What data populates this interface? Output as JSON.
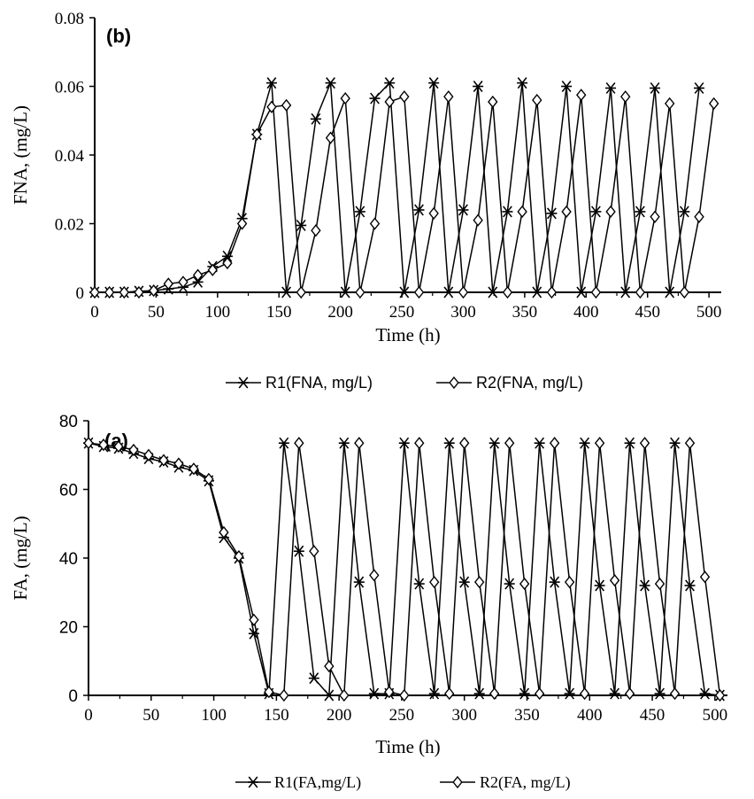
{
  "chart_data": [
    {
      "panel_label": "(b)",
      "type": "line",
      "xlabel": "Time (h)",
      "ylabel": "FNA, (mg/L)",
      "xlim": [
        0,
        510
      ],
      "ylim": [
        0,
        0.08
      ],
      "x_ticks": [
        "0",
        "50",
        "100",
        "150",
        "200",
        "250",
        "300",
        "350",
        "400",
        "450",
        "500"
      ],
      "y_ticks": [
        "0",
        "0.02",
        "0.04",
        "0.06",
        "0.08"
      ],
      "grid": false,
      "legend_position": "bottom",
      "series": [
        {
          "name": "R1(FNA, mg/L)",
          "marker": "asterisk",
          "x": [
            0,
            12,
            24,
            36,
            48,
            60,
            72,
            84,
            96,
            108,
            120,
            132,
            144,
            156,
            168,
            180,
            192,
            204,
            216,
            228,
            240,
            252,
            264,
            276,
            288,
            300,
            312,
            324,
            336,
            348,
            360,
            372,
            384,
            396,
            408,
            420,
            432,
            444,
            456,
            468,
            480,
            492
          ],
          "y": [
            0,
            0,
            0,
            0.0003,
            0.0005,
            0.001,
            0.0015,
            0.003,
            0.0075,
            0.0105,
            0.0215,
            0.046,
            0.061,
            0,
            0.0195,
            0.0505,
            0.061,
            0,
            0.0235,
            0.0565,
            0.061,
            0,
            0.024,
            0.061,
            0,
            0.024,
            0.06,
            0,
            0.0235,
            0.061,
            0,
            0.023,
            0.06,
            0,
            0.0235,
            0.0595,
            0,
            0.0235,
            0.0595,
            0,
            0.0235,
            0.0595
          ]
        },
        {
          "name": "R2(FNA, mg/L)",
          "marker": "diamond",
          "x": [
            0,
            12,
            24,
            36,
            48,
            60,
            72,
            84,
            96,
            108,
            120,
            132,
            144,
            156,
            168,
            180,
            192,
            204,
            216,
            228,
            240,
            252,
            264,
            276,
            288,
            300,
            312,
            324,
            336,
            348,
            360,
            372,
            384,
            396,
            408,
            420,
            432,
            444,
            456,
            468,
            480,
            492,
            504
          ],
          "y": [
            0,
            0,
            0,
            0,
            0.0005,
            0.0025,
            0.003,
            0.005,
            0.0065,
            0.0085,
            0.02,
            0.046,
            0.054,
            0.0545,
            0,
            0.018,
            0.045,
            0.0565,
            0,
            0.02,
            0.0555,
            0.057,
            0,
            0.023,
            0.057,
            0,
            0.021,
            0.0555,
            0,
            0.0235,
            0.056,
            0,
            0.0235,
            0.0575,
            0,
            0.0235,
            0.057,
            0,
            0.022,
            0.055,
            0,
            0.022,
            0.055
          ]
        }
      ]
    },
    {
      "panel_label": "(a)",
      "type": "line",
      "xlabel": "Time (h)",
      "ylabel": "FA, (mg/L)",
      "xlim": [
        0,
        510
      ],
      "ylim": [
        0,
        80
      ],
      "x_ticks": [
        "0",
        "50",
        "100",
        "150",
        "200",
        "250",
        "300",
        "350",
        "400",
        "450",
        "500"
      ],
      "y_ticks": [
        "0",
        "20",
        "40",
        "60",
        "80"
      ],
      "grid": false,
      "legend_position": "bottom",
      "series": [
        {
          "name": "R1(FA,mg/L)",
          "marker": "asterisk",
          "x": [
            0,
            12,
            24,
            36,
            48,
            60,
            72,
            84,
            96,
            108,
            120,
            132,
            144,
            156,
            168,
            180,
            192,
            204,
            216,
            228,
            240,
            252,
            264,
            276,
            288,
            300,
            312,
            324,
            336,
            348,
            360,
            372,
            384,
            396,
            408,
            420,
            432,
            444,
            456,
            468,
            480,
            492,
            504
          ],
          "y": [
            73.5,
            72.5,
            72,
            70.5,
            69,
            68,
            66.5,
            65.5,
            62.5,
            46,
            40,
            18,
            0.5,
            73.5,
            42,
            5,
            0,
            73.5,
            33,
            0.5,
            0.5,
            73.5,
            32.5,
            0.5,
            73.5,
            33,
            0.5,
            73.5,
            32.5,
            0.5,
            73.5,
            33,
            0.5,
            73.5,
            32,
            0.5,
            73.5,
            32,
            0.5,
            73.5,
            32,
            0.5,
            0
          ]
        },
        {
          "name": "R2(FA, mg/L)",
          "marker": "diamond",
          "x": [
            0,
            12,
            24,
            36,
            48,
            60,
            72,
            84,
            96,
            108,
            120,
            132,
            144,
            156,
            168,
            180,
            192,
            204,
            216,
            228,
            240,
            252,
            264,
            276,
            288,
            300,
            312,
            324,
            336,
            348,
            360,
            372,
            384,
            396,
            408,
            420,
            432,
            444,
            456,
            468,
            480,
            492,
            504
          ],
          "y": [
            73.5,
            73,
            72.5,
            71.5,
            70,
            68.5,
            67.5,
            66,
            63,
            47.5,
            40.5,
            22,
            1,
            0,
            73.5,
            42,
            8.5,
            0,
            73.5,
            35,
            1,
            0,
            73.5,
            33,
            0.5,
            73.5,
            33,
            0.5,
            73.5,
            32.5,
            0.5,
            73.5,
            33,
            0.5,
            73.5,
            33.5,
            0.5,
            73.5,
            32.5,
            0.5,
            73.5,
            34.5,
            0
          ]
        }
      ]
    }
  ]
}
